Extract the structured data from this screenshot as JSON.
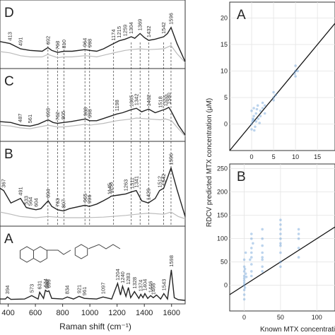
{
  "figure": {
    "left_xlabel": "Raman shift (cm⁻¹)",
    "right_ylabel": "RDCV predicted MTX concentration (μM)",
    "right_xlabel": "Known MTX concentration"
  },
  "chart_data": [
    {
      "type": "line",
      "panel_label": "D",
      "xlabel": "Raman shift (cm⁻¹)",
      "xlim": [
        340,
        1700
      ],
      "x_ticks": [
        400,
        600,
        800,
        1000,
        1200,
        1400,
        1600
      ],
      "series": [
        {
          "color": "#222222",
          "x": [
            340,
            413,
            491,
            560,
            650,
            692,
            720,
            763,
            810,
            870,
            964,
            998,
            1050,
            1100,
            1174,
            1215,
            1259,
            1304,
            1330,
            1369,
            1400,
            1432,
            1480,
            1542,
            1570,
            1596,
            1640,
            1700
          ],
          "values": [
            0.6,
            0.55,
            0.42,
            0.38,
            0.36,
            0.45,
            0.38,
            0.33,
            0.36,
            0.36,
            0.4,
            0.38,
            0.36,
            0.42,
            0.55,
            0.62,
            0.66,
            0.72,
            0.68,
            0.8,
            0.7,
            0.63,
            0.66,
            0.72,
            0.8,
            0.95,
            0.55,
            0.1
          ]
        },
        {
          "color": "#bbbbbb",
          "x": [
            340,
            413,
            491,
            560,
            650,
            692,
            763,
            810,
            870,
            964,
            998,
            1050,
            1100,
            1174,
            1259,
            1304,
            1369,
            1432,
            1542,
            1596,
            1640,
            1700
          ],
          "values": [
            0.35,
            0.32,
            0.25,
            0.22,
            0.22,
            0.28,
            0.2,
            0.22,
            0.22,
            0.25,
            0.24,
            0.22,
            0.26,
            0.32,
            0.38,
            0.4,
            0.42,
            0.4,
            0.42,
            0.5,
            0.3,
            0.08
          ]
        }
      ],
      "peak_labels": [
        "413",
        "491",
        "692",
        "763",
        "810",
        "964",
        "998",
        "1174",
        "1215",
        "1259",
        "1304",
        "1369",
        "1432",
        "1542",
        "1596"
      ],
      "peak_positions": [
        413,
        491,
        692,
        763,
        810,
        964,
        998,
        1174,
        1215,
        1259,
        1304,
        1369,
        1432,
        1542,
        1596
      ]
    },
    {
      "type": "line",
      "panel_label": "C",
      "xlabel": "Raman shift (cm⁻¹)",
      "xlim": [
        340,
        1700
      ],
      "series": [
        {
          "color": "#222222",
          "x": [
            340,
            420,
            487,
            561,
            620,
            693,
            730,
            762,
            805,
            860,
            968,
            998,
            1050,
            1100,
            1198,
            1240,
            1305,
            1342,
            1380,
            1432,
            1480,
            1518,
            1555,
            1580,
            1600,
            1650,
            1700
          ],
          "values": [
            0.38,
            0.36,
            0.3,
            0.28,
            0.32,
            0.42,
            0.36,
            0.34,
            0.36,
            0.38,
            0.44,
            0.4,
            0.4,
            0.45,
            0.55,
            0.58,
            0.65,
            0.68,
            0.6,
            0.66,
            0.58,
            0.62,
            0.66,
            0.7,
            0.6,
            0.3,
            0.08
          ]
        },
        {
          "color": "#bbbbbb",
          "x": [
            340,
            420,
            487,
            561,
            693,
            762,
            805,
            860,
            968,
            998,
            1100,
            1198,
            1305,
            1342,
            1432,
            1518,
            1555,
            1600,
            1650,
            1700
          ],
          "values": [
            0.3,
            0.28,
            0.24,
            0.22,
            0.3,
            0.26,
            0.26,
            0.28,
            0.32,
            0.3,
            0.34,
            0.4,
            0.44,
            0.46,
            0.44,
            0.42,
            0.44,
            0.4,
            0.22,
            0.05
          ]
        }
      ],
      "peak_labels": [
        "487",
        "561",
        "693",
        "762",
        "805",
        "968",
        "998",
        "1198",
        "1305",
        "1342",
        "1432",
        "1518",
        "1555",
        "1580"
      ],
      "peak_positions": [
        487,
        561,
        693,
        762,
        805,
        968,
        998,
        1198,
        1305,
        1342,
        1432,
        1518,
        1555,
        1580
      ]
    },
    {
      "type": "line",
      "panel_label": "B",
      "xlabel": "Raman shift (cm⁻¹)",
      "xlim": [
        340,
        1700
      ],
      "series": [
        {
          "color": "#222222",
          "x": [
            340,
            367,
            420,
            491,
            533,
            564,
            604,
            640,
            694,
            720,
            763,
            807,
            850,
            965,
            996,
            1050,
            1100,
            1145,
            1156,
            1210,
            1263,
            1311,
            1341,
            1380,
            1429,
            1480,
            1512,
            1542,
            1596,
            1640,
            1700
          ],
          "values": [
            0.62,
            0.58,
            0.36,
            0.44,
            0.28,
            0.26,
            0.24,
            0.26,
            0.4,
            0.3,
            0.24,
            0.22,
            0.26,
            0.32,
            0.3,
            0.34,
            0.4,
            0.46,
            0.48,
            0.5,
            0.52,
            0.56,
            0.58,
            0.4,
            0.36,
            0.44,
            0.58,
            0.62,
            0.98,
            0.6,
            0.12
          ]
        },
        {
          "color": "#bbbbbb",
          "x": [
            340,
            420,
            491,
            604,
            694,
            807,
            965,
            1100,
            1263,
            1341,
            1429,
            1542,
            1596,
            1650,
            1700
          ],
          "values": [
            0.2,
            0.16,
            0.12,
            0.1,
            0.12,
            0.1,
            0.1,
            0.11,
            0.14,
            0.16,
            0.18,
            0.16,
            0.2,
            0.12,
            0.08
          ]
        }
      ],
      "peak_labels": [
        "367",
        "491",
        "533",
        "564",
        "604",
        "694",
        "763",
        "807",
        "965",
        "996",
        "1145",
        "1156",
        "1263",
        "1311",
        "1341",
        "1429",
        "1512",
        "1542",
        "1596"
      ],
      "peak_positions": [
        367,
        491,
        533,
        564,
        604,
        694,
        763,
        807,
        965,
        996,
        1145,
        1156,
        1263,
        1311,
        1341,
        1429,
        1512,
        1542,
        1596
      ]
    },
    {
      "type": "line",
      "panel_label": "A",
      "xlabel": "Raman shift (cm⁻¹)",
      "xlim": [
        340,
        1700
      ],
      "series": [
        {
          "color": "#222222",
          "x": [
            340,
            380,
            394,
            420,
            520,
            573,
            620,
            631,
            660,
            674,
            686,
            699,
            720,
            800,
            834,
            880,
            921,
            960,
            1050,
            1097,
            1160,
            1204,
            1225,
            1240,
            1265,
            1283,
            1300,
            1328,
            1360,
            1374,
            1390,
            1404,
            1425,
            1446,
            1466,
            1490,
            1520,
            1543,
            1570,
            1598,
            1620,
            1650,
            1700
          ],
          "values": [
            0.06,
            0.06,
            0.12,
            0.05,
            0.06,
            0.16,
            0.06,
            0.26,
            0.08,
            0.32,
            0.28,
            0.3,
            0.08,
            0.06,
            0.12,
            0.06,
            0.14,
            0.08,
            0.06,
            0.12,
            0.06,
            0.52,
            0.18,
            0.44,
            0.14,
            0.4,
            0.1,
            0.28,
            0.08,
            0.2,
            0.1,
            0.22,
            0.08,
            0.16,
            0.1,
            0.18,
            0.06,
            0.22,
            0.06,
            0.92,
            0.1,
            0.04,
            0.02
          ]
        }
      ],
      "peak_labels": [
        "394",
        "573",
        "631",
        "674",
        "686",
        "699",
        "834",
        "921",
        "961",
        "1097",
        "1204",
        "1240",
        "1283",
        "1328",
        "1374",
        "1404",
        "1446",
        "1466",
        "1543",
        "1598"
      ],
      "peak_positions": [
        394,
        573,
        631,
        674,
        686,
        699,
        834,
        921,
        961,
        1097,
        1204,
        1240,
        1283,
        1328,
        1374,
        1404,
        1446,
        1466,
        1543,
        1598
      ]
    },
    {
      "type": "scatter",
      "panel_label": "A",
      "xlim": [
        -5,
        19
      ],
      "ylim": [
        -5,
        23
      ],
      "x_ticks": [
        0,
        5,
        10,
        15
      ],
      "y_ticks": [
        0,
        5,
        10,
        15,
        20
      ],
      "grid": true,
      "identity_line": true,
      "point_color": "#6a9fd8",
      "points": [
        [
          0,
          -1
        ],
        [
          0.2,
          0.5
        ],
        [
          0.5,
          1.5
        ],
        [
          0.8,
          -0.5
        ],
        [
          1,
          2
        ],
        [
          1,
          0.5
        ],
        [
          1.5,
          1
        ],
        [
          0,
          2.5
        ],
        [
          0.5,
          3
        ],
        [
          1.2,
          2.8
        ],
        [
          2,
          1.5
        ],
        [
          2,
          2.5
        ],
        [
          2.5,
          3
        ],
        [
          3,
          2
        ],
        [
          3,
          3.5
        ],
        [
          2.5,
          4
        ],
        [
          0.3,
          1
        ],
        [
          1.8,
          0.2
        ],
        [
          0.6,
          -1.2
        ],
        [
          1.4,
          3.5
        ],
        [
          0,
          0
        ],
        [
          0.4,
          0.8
        ],
        [
          5,
          5
        ],
        [
          5,
          6
        ],
        [
          5.5,
          5.5
        ],
        [
          5,
          4.5
        ],
        [
          10,
          9
        ],
        [
          10,
          10
        ],
        [
          10,
          11
        ],
        [
          10.5,
          10
        ],
        [
          9.8,
          9.5
        ]
      ]
    },
    {
      "type": "scatter",
      "panel_label": "B",
      "xlim": [
        -20,
        125
      ],
      "ylim": [
        -55,
        260
      ],
      "x_ticks": [
        0,
        50,
        100
      ],
      "y_ticks": [
        0,
        50,
        100,
        150,
        200,
        250
      ],
      "grid": true,
      "identity_line": true,
      "point_color": "#6a9fd8",
      "points": [
        [
          0,
          0
        ],
        [
          0,
          10
        ],
        [
          0,
          20
        ],
        [
          0,
          -10
        ],
        [
          0,
          30
        ],
        [
          0,
          5
        ],
        [
          0,
          15
        ],
        [
          0,
          -20
        ],
        [
          0,
          40
        ],
        [
          2,
          25
        ],
        [
          1,
          -5
        ],
        [
          3,
          18
        ],
        [
          0,
          -30
        ],
        [
          0,
          55
        ],
        [
          2,
          70
        ],
        [
          1,
          35
        ],
        [
          10,
          30
        ],
        [
          10,
          45
        ],
        [
          10,
          60
        ],
        [
          10,
          80
        ],
        [
          10,
          100
        ],
        [
          10,
          20
        ],
        [
          10,
          70
        ],
        [
          12,
          90
        ],
        [
          8,
          55
        ],
        [
          10,
          110
        ],
        [
          25,
          40
        ],
        [
          25,
          55
        ],
        [
          25,
          70
        ],
        [
          25,
          85
        ],
        [
          25,
          30
        ],
        [
          25,
          100
        ],
        [
          25,
          120
        ],
        [
          25,
          60
        ],
        [
          50,
          50
        ],
        [
          50,
          70
        ],
        [
          50,
          90
        ],
        [
          50,
          110
        ],
        [
          50,
          130
        ],
        [
          50,
          40
        ],
        [
          50,
          100
        ],
        [
          50,
          120
        ],
        [
          50,
          85
        ],
        [
          50,
          140
        ],
        [
          75,
          80
        ],
        [
          75,
          100
        ],
        [
          75,
          120
        ],
        [
          75,
          60
        ],
        [
          75,
          110
        ]
      ]
    }
  ]
}
